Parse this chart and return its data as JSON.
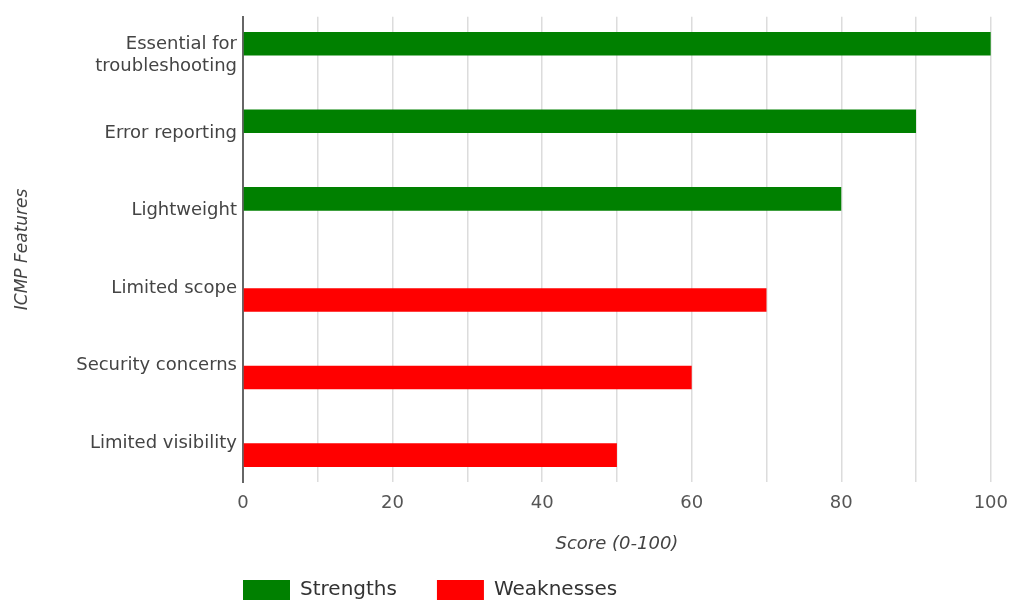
{
  "chart_data": {
    "type": "bar",
    "orientation": "horizontal",
    "categories": [
      "Essential for troubleshooting",
      "Error reporting",
      "Lightweight",
      "Limited scope",
      "Security concerns",
      "Limited visibility"
    ],
    "series": [
      {
        "name": "Strengths",
        "color": "#008000",
        "values": [
          100,
          90,
          80,
          null,
          null,
          null
        ]
      },
      {
        "name": "Weaknesses",
        "color": "#ff0000",
        "values": [
          null,
          null,
          null,
          70,
          60,
          50
        ]
      }
    ],
    "xlabel": "Score (0-100)",
    "ylabel": "ICMP Features",
    "xlim": [
      0,
      100
    ],
    "xticks": [
      0,
      {
        "value": 10,
        "label": null
      },
      20,
      {
        "value": 30,
        "label": null
      },
      40,
      {
        "value": 50,
        "label": null
      },
      60,
      {
        "value": 70,
        "label": null
      },
      80,
      {
        "value": 90,
        "label": null
      },
      100
    ],
    "grid": "x",
    "legend": "bottom left"
  }
}
